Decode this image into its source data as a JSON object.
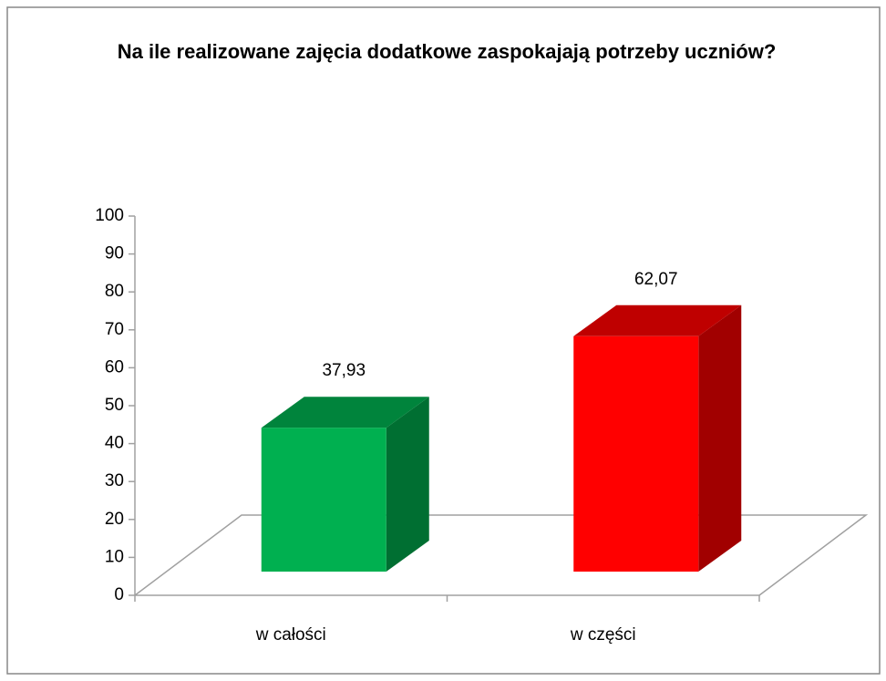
{
  "chart_data": {
    "type": "bar3d",
    "title": "Na ile realizowane zajęcia dodatkowe zaspokajają potrzeby uczniów?",
    "categories": [
      "w całości",
      "w części"
    ],
    "values": [
      37.93,
      62.07
    ],
    "value_labels": [
      "37,93",
      "62,07"
    ],
    "colors": [
      "#00b050",
      "#ff0000"
    ],
    "ylim": [
      0,
      100
    ],
    "yticks": [
      0,
      10,
      20,
      30,
      40,
      50,
      60,
      70,
      80,
      90,
      100
    ],
    "grid": false
  }
}
